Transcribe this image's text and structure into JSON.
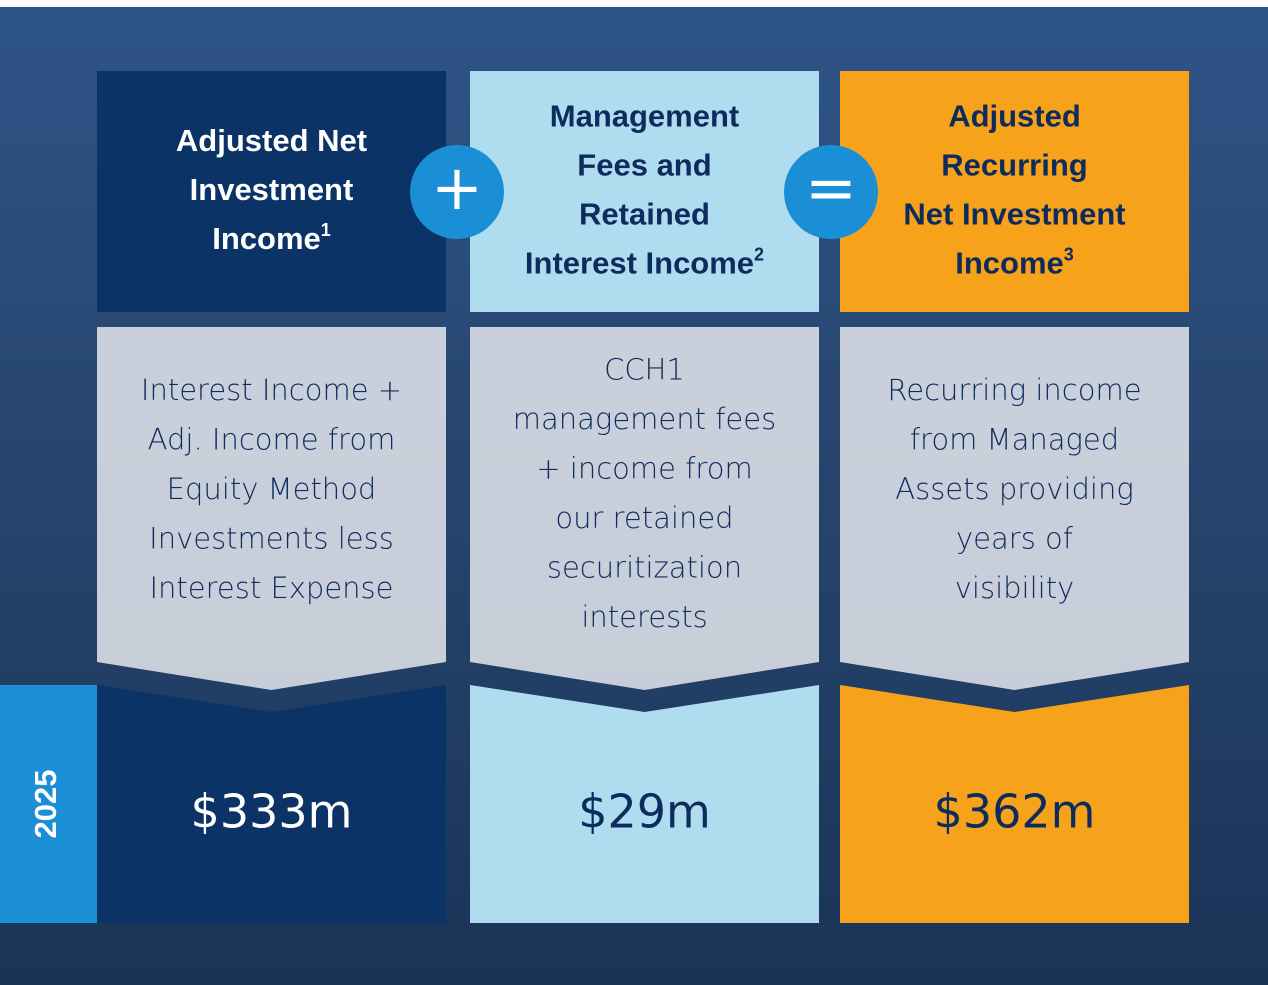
{
  "year": "2025",
  "operators": [
    "+",
    "="
  ],
  "columns": [
    {
      "title": [
        "Adjusted Net",
        "Investment",
        "Income"
      ],
      "footnote": "1",
      "description": [
        "Interest Income +",
        "Adj. Income from",
        "Equity Method",
        "Investments less",
        "Interest Expense"
      ],
      "value": "$333m"
    },
    {
      "title": [
        "Management",
        "Fees and",
        "Retained",
        "Interest Income"
      ],
      "footnote": "2",
      "description": [
        "CCH1",
        "management fees",
        "+ income from",
        "our retained",
        "securitization",
        "interests"
      ],
      "value": "$29m"
    },
    {
      "title": [
        "Adjusted",
        "Recurring",
        "Net Investment",
        "Income"
      ],
      "footnote": "3",
      "description": [
        "Recurring income",
        "from Managed",
        "Assets providing",
        "years of",
        "visibility"
      ],
      "value": "$362m"
    }
  ]
}
